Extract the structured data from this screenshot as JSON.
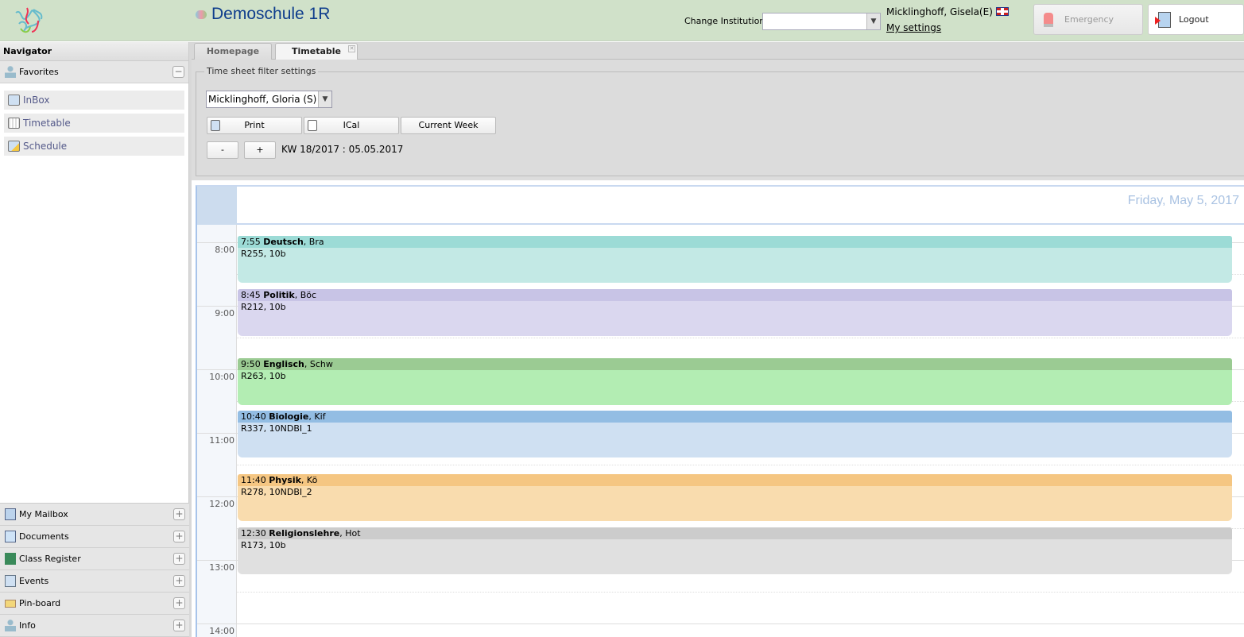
{
  "header": {
    "school": "Demoschule 1R",
    "change_institution_label": "Change Institution",
    "institution_value": "",
    "user": "Micklinghoff, Gisela(E)",
    "language_flag": "uk-flag-icon",
    "my_settings": "My settings",
    "emergency": "Emergency",
    "logout": "Logout"
  },
  "navigator": {
    "title": "Navigator",
    "favorites": "Favorites",
    "favorite_items": [
      {
        "label": "InBox",
        "icon": "inbox-icon"
      },
      {
        "label": "Timetable",
        "icon": "timetable-icon"
      },
      {
        "label": "Schedule",
        "icon": "schedule-icon"
      }
    ],
    "sections": [
      {
        "label": "My Mailbox",
        "icon": "mailbox-icon"
      },
      {
        "label": "Documents",
        "icon": "folder-icon"
      },
      {
        "label": "Class Register",
        "icon": "book-icon"
      },
      {
        "label": "Events",
        "icon": "calendar-icon"
      },
      {
        "label": "Pin-board",
        "icon": "pinboard-icon"
      },
      {
        "label": "Info",
        "icon": "person-icon"
      }
    ]
  },
  "tabs": [
    {
      "label": "Homepage",
      "active": false
    },
    {
      "label": "Timetable",
      "active": true
    }
  ],
  "filter": {
    "legend": "Time sheet filter settings",
    "person": "Micklinghoff, Gloria (S)",
    "print": "Print",
    "ical": "ICal",
    "current_week": "Current Week",
    "minus": "-",
    "plus": "+",
    "week_label": "KW 18/2017 : 05.05.2017"
  },
  "calendar": {
    "day": "Friday, May 5, 2017",
    "hours": [
      "8:00",
      "9:00",
      "10:00",
      "11:00",
      "12:00",
      "13:00",
      "14:00"
    ],
    "events": [
      {
        "time": "7:55",
        "subject": "Deutsch",
        "teacher": "Bra",
        "room": "R255, 10b",
        "start": "7:55",
        "duration_min": 45,
        "head": "#9cdbd6",
        "body": "#c3e9e5"
      },
      {
        "time": "8:45",
        "subject": "Politik",
        "teacher": "Böc",
        "room": "R212, 10b",
        "start": "8:45",
        "duration_min": 45,
        "head": "#c8c4e6",
        "body": "#dad7ef"
      },
      {
        "time": "9:50",
        "subject": "Englisch",
        "teacher": "Schw",
        "room": "R263, 10b",
        "start": "9:50",
        "duration_min": 45,
        "head": "#9bcb93",
        "body": "#b3edb3"
      },
      {
        "time": "10:40",
        "subject": "Biologie",
        "teacher": "Kif",
        "room": "R337, 10NDBI_1",
        "start": "10:40",
        "duration_min": 45,
        "head": "#93bde3",
        "body": "#cfe0f2"
      },
      {
        "time": "11:40",
        "subject": "Physik",
        "teacher": "Kö",
        "room": "R278, 10NDBI_2",
        "start": "11:40",
        "duration_min": 45,
        "head": "#f5c682",
        "body": "#f9dcae"
      },
      {
        "time": "12:30",
        "subject": "Religionslehre",
        "teacher": "Hot",
        "room": "R173, 10b",
        "start": "12:30",
        "duration_min": 45,
        "head": "#cccccc",
        "body": "#e0e0e0"
      }
    ]
  }
}
